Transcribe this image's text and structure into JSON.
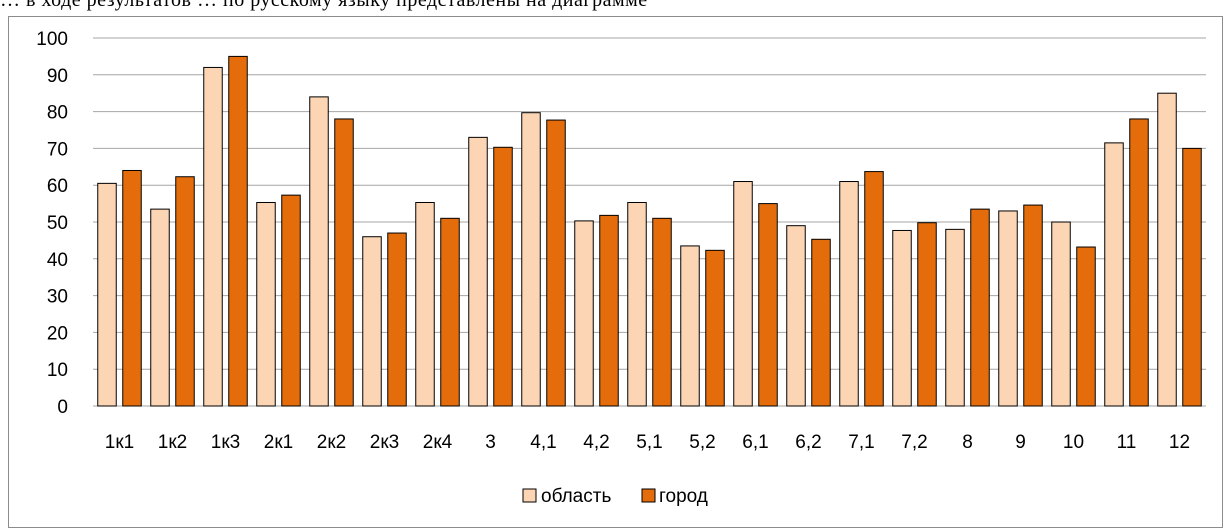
{
  "top_text": "… в ходе результатов … по русскому языку представлены на диаграмме",
  "colors": {
    "oblast": "#fcd5b4",
    "gorod": "#e46c0a",
    "bar_outline": "#000000",
    "grid": "#a6a6a6"
  },
  "chart_data": {
    "type": "bar",
    "title": "",
    "xlabel": "",
    "ylabel": "",
    "ylim": [
      0,
      100
    ],
    "yticks": [
      0,
      10,
      20,
      30,
      40,
      50,
      60,
      70,
      80,
      90,
      100
    ],
    "grid": true,
    "legend_position": "bottom",
    "categories": [
      "1к1",
      "1к2",
      "1к3",
      "2к1",
      "2к2",
      "2к3",
      "2к4",
      "3",
      "4,1",
      "4,2",
      "5,1",
      "5,2",
      "6,1",
      "6,2",
      "7,1",
      "7,2",
      "8",
      "9",
      "10",
      "11",
      "12"
    ],
    "series": [
      {
        "name": "область",
        "values": [
          60.5,
          53.5,
          92,
          55.3,
          84,
          46,
          55.3,
          73,
          79.7,
          50.3,
          55.3,
          43.5,
          61,
          49,
          61,
          47.7,
          48,
          53,
          50,
          71.5,
          85
        ]
      },
      {
        "name": "город",
        "values": [
          64,
          62.3,
          95,
          57.3,
          78,
          47,
          51,
          70.3,
          77.7,
          51.8,
          51,
          42.3,
          55,
          45.3,
          63.7,
          49.8,
          53.5,
          54.6,
          43.2,
          78,
          70
        ]
      }
    ]
  }
}
